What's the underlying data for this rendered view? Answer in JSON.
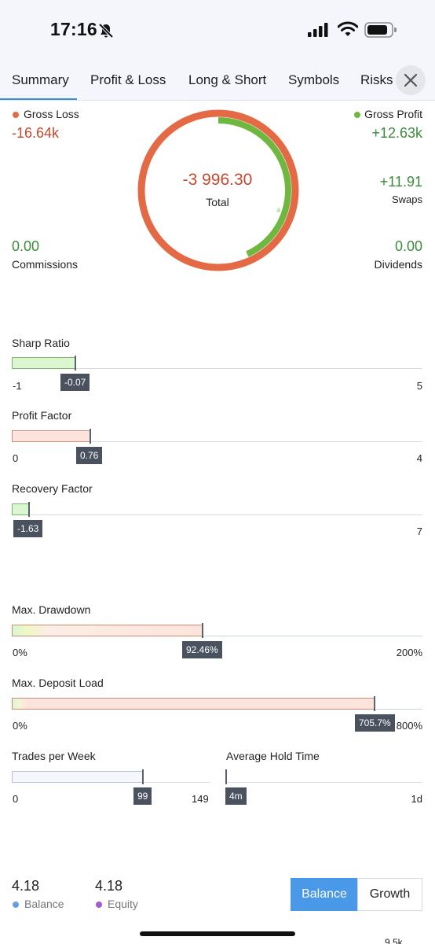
{
  "status_bar": {
    "time": "17:16"
  },
  "tabs": [
    {
      "label": "Summary"
    },
    {
      "label": "Profit & Loss"
    },
    {
      "label": "Long & Short"
    },
    {
      "label": "Symbols"
    },
    {
      "label": "Risks"
    }
  ],
  "summary": {
    "gross_loss": {
      "label": "Gross Loss",
      "value": "-16.64k"
    },
    "gross_profit": {
      "label": "Gross Profit",
      "value": "+12.63k"
    },
    "total": {
      "label": "Total",
      "value": "-3 996.30"
    },
    "swaps": {
      "label": "Swaps",
      "value": "+11.91"
    },
    "commissions": {
      "label": "Commissions",
      "value": "0.00"
    },
    "dividends": {
      "label": "Dividends",
      "value": "0.00"
    },
    "ring_profit_fraction": 0.432
  },
  "metrics": {
    "sharp_ratio": {
      "title": "Sharp Ratio",
      "min": "-1",
      "max": "5",
      "value": "-0.07",
      "value_num": -0.07,
      "min_num": -1,
      "max_num": 5
    },
    "profit_factor": {
      "title": "Profit Factor",
      "min": "0",
      "max": "4",
      "value": "0.76",
      "value_num": 0.76,
      "min_num": 0,
      "max_num": 4
    },
    "recovery_factor": {
      "title": "Recovery Factor",
      "max": "7",
      "value": "-1.63",
      "value_num": -1.63,
      "min_num": -2,
      "max_num": 7
    },
    "max_drawdown": {
      "title": "Max. Drawdown",
      "min": "0%",
      "max": "200%",
      "value": "92.46%",
      "value_num": 92.46,
      "min_num": 0,
      "max_num": 200
    },
    "max_deposit_load": {
      "title": "Max. Deposit Load",
      "min": "0%",
      "max": "800%",
      "value": "705.7%",
      "value_num": 705.7,
      "min_num": 0,
      "max_num": 800
    },
    "trades_per_week": {
      "title": "Trades per Week",
      "min": "0",
      "max": "149",
      "value": "99",
      "value_num": 99,
      "min_num": 0,
      "max_num": 149
    },
    "avg_hold_time": {
      "title": "Average Hold Time",
      "max": "1d",
      "value": "4m"
    }
  },
  "bottom": {
    "balance": {
      "value": "4.18",
      "label": "Balance"
    },
    "equity": {
      "value": "4.18",
      "label": "Equity"
    },
    "toggle": {
      "balance_label": "Balance",
      "growth_label": "Growth",
      "selected": "Balance"
    },
    "cut_label": "9.5k"
  },
  "colors": {
    "loss": "#c2492e",
    "profit": "#3c8b3c",
    "loss_ring": "#e46a46",
    "profit_ring": "#6fb83f",
    "accent": "#3b8ede",
    "balance_dot": "#6a9ee0",
    "equity_dot": "#a25bd6"
  }
}
